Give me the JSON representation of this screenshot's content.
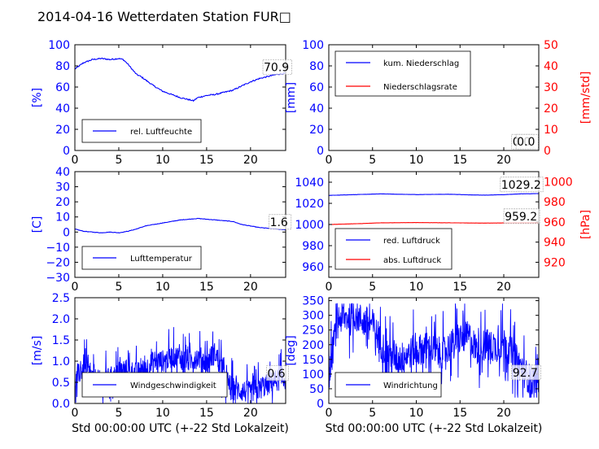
{
  "figure": {
    "title": "2014-04-16 Wetterdaten Station FUR□"
  },
  "colors": {
    "blue": "#0000ff",
    "red": "#ff0000",
    "black": "#000000"
  },
  "chart_data": [
    {
      "id": "humidity",
      "type": "line",
      "xlim": [
        0,
        24
      ],
      "ylim": [
        0,
        100
      ],
      "xticks": [
        "0",
        "5",
        "10",
        "15",
        "20"
      ],
      "xtick_values": [
        0,
        5,
        10,
        15,
        20
      ],
      "yticks": [
        "0",
        "20",
        "40",
        "60",
        "80",
        "100"
      ],
      "ytick_values": [
        0,
        20,
        40,
        60,
        80,
        100
      ],
      "ylabel": "[%]",
      "ylabel_color": "blue",
      "ytick_color": "blue",
      "xlabel": "",
      "legend": {
        "position": "lower-left",
        "entries": [
          {
            "name": "rel. Luftfeuchte",
            "color": "blue"
          }
        ]
      },
      "annotations": [
        {
          "text": "70.9",
          "x": 21.5,
          "y": 75
        }
      ],
      "series": [
        {
          "name": "rel. Luftfeuchte",
          "color": "blue",
          "axis": "left",
          "noise": 1.2,
          "x": [
            0,
            0.5,
            1,
            2,
            3,
            4,
            5,
            5.5,
            6,
            6.5,
            7,
            7.5,
            8,
            9,
            10,
            11,
            12,
            13,
            13.5,
            14,
            15,
            16,
            17,
            18,
            19,
            20,
            21,
            22,
            23,
            24
          ],
          "y": [
            77,
            80,
            83,
            86,
            87,
            86,
            87,
            86,
            82,
            77,
            72,
            70,
            67,
            61,
            56,
            53,
            50,
            48,
            47,
            50,
            52,
            53,
            55,
            57,
            61,
            65,
            68,
            70,
            72,
            73
          ]
        }
      ]
    },
    {
      "id": "precipitation",
      "type": "line",
      "xlim": [
        0,
        24
      ],
      "ylim": [
        0,
        100
      ],
      "ylim2": [
        0,
        50
      ],
      "xticks": [
        "0",
        "5",
        "10",
        "15",
        "20"
      ],
      "xtick_values": [
        0,
        5,
        10,
        15,
        20
      ],
      "yticks": [
        "0",
        "20",
        "40",
        "60",
        "80",
        "100"
      ],
      "ytick_values": [
        0,
        20,
        40,
        60,
        80,
        100
      ],
      "yticks2": [
        "0",
        "10",
        "20",
        "30",
        "40",
        "50"
      ],
      "ytick2_values": [
        0,
        10,
        20,
        30,
        40,
        50
      ],
      "ylabel": "[mm]",
      "ylabel_color": "blue",
      "ytick_color": "blue",
      "ylabel2": "[mm/std]",
      "ylabel2_color": "red",
      "ytick2_color": "red",
      "xlabel": "",
      "legend": {
        "position": "upper-left",
        "entries": [
          {
            "name": "kum. Niederschlag",
            "color": "blue"
          },
          {
            "name": "Niederschlagsrate",
            "color": "red"
          }
        ]
      },
      "annotations": [
        {
          "text": "0.0",
          "x": 21.0,
          "y": 4.5
        },
        {
          "text": "0.0",
          "x": 21.5,
          "y": 4.5
        }
      ],
      "series": [
        {
          "name": "kum. Niederschlag",
          "color": "blue",
          "axis": "left",
          "noise": 0,
          "x": [
            0,
            24
          ],
          "y": [
            0,
            0
          ]
        },
        {
          "name": "Niederschlagsrate",
          "color": "red",
          "axis": "right",
          "noise": 0,
          "x": [
            0,
            24
          ],
          "y": [
            0,
            0
          ]
        }
      ]
    },
    {
      "id": "temperature",
      "type": "line",
      "xlim": [
        0,
        24
      ],
      "ylim": [
        -30,
        40
      ],
      "xticks": [
        "0",
        "5",
        "10",
        "15",
        "20"
      ],
      "xtick_values": [
        0,
        5,
        10,
        15,
        20
      ],
      "yticks": [
        "−30",
        "−20",
        "−10",
        "0",
        "10",
        "20",
        "30",
        "40"
      ],
      "ytick_values": [
        -30,
        -20,
        -10,
        0,
        10,
        20,
        30,
        40
      ],
      "ylabel": "[C]",
      "ylabel_color": "blue",
      "ytick_color": "blue",
      "xlabel": "",
      "legend": {
        "position": "lower-left",
        "entries": [
          {
            "name": "Lufttemperatur",
            "color": "blue"
          }
        ]
      },
      "annotations": [
        {
          "text": "1.6",
          "x": 22.2,
          "y": 4
        }
      ],
      "series": [
        {
          "name": "Lufttemperatur",
          "color": "blue",
          "axis": "left",
          "noise": 0.3,
          "x": [
            0,
            1,
            2,
            3,
            4,
            5,
            6,
            7,
            8,
            9,
            10,
            11,
            12,
            13,
            14,
            15,
            16,
            17,
            18,
            19,
            20,
            21,
            22,
            23,
            24
          ],
          "y": [
            2,
            0.5,
            0,
            -0.5,
            0,
            -0.5,
            0.5,
            2,
            4,
            5,
            6,
            7,
            8,
            8.5,
            9,
            8.5,
            8,
            7.5,
            7,
            5,
            4,
            3,
            2.5,
            2,
            1.6
          ]
        }
      ]
    },
    {
      "id": "pressure",
      "type": "line",
      "xlim": [
        0,
        24
      ],
      "ylim": [
        950,
        1050
      ],
      "ylim2": [
        905,
        1010
      ],
      "xticks": [
        "0",
        "5",
        "10",
        "15",
        "20"
      ],
      "xtick_values": [
        0,
        5,
        10,
        15,
        20
      ],
      "yticks": [
        "960",
        "980",
        "1000",
        "1020",
        "1040"
      ],
      "ytick_values": [
        960,
        980,
        1000,
        1020,
        1040
      ],
      "yticks2": [
        "920",
        "940",
        "960",
        "980",
        "1000"
      ],
      "ytick2_values": [
        920,
        940,
        960,
        980,
        1000
      ],
      "ylabel": "",
      "ytick_color": "blue",
      "ylabel2": "[hPa]",
      "ylabel2_color": "red",
      "ytick2_color": "red",
      "xlabel": "",
      "legend": {
        "position": "lower-left",
        "entries": [
          {
            "name": "red. Luftdruck",
            "color": "blue"
          },
          {
            "name": "abs. Luftdruck",
            "color": "red"
          }
        ]
      },
      "annotations": [
        {
          "text": "1029.2",
          "x": 19.7,
          "y": 1034
        },
        {
          "text": "959.2",
          "x": 20.1,
          "y": 1004
        }
      ],
      "series": [
        {
          "name": "red. Luftdruck",
          "color": "blue",
          "axis": "left",
          "noise": 0.15,
          "x": [
            0,
            2,
            4,
            6,
            8,
            10,
            12,
            14,
            16,
            18,
            20,
            22,
            24
          ],
          "y": [
            1027.5,
            1028,
            1028.5,
            1029,
            1028.6,
            1028.3,
            1028.5,
            1028.6,
            1028,
            1027.8,
            1028.2,
            1029,
            1029.2
          ]
        },
        {
          "name": "abs. Luftdruck",
          "color": "red",
          "axis": "right",
          "noise": 0.12,
          "x": [
            0,
            2,
            4,
            6,
            8,
            10,
            12,
            14,
            16,
            18,
            20,
            22,
            24
          ],
          "y": [
            957.5,
            958,
            958.5,
            959.2,
            959.3,
            959.4,
            959.3,
            959.2,
            959,
            958.9,
            959,
            959.2,
            959.2
          ]
        }
      ]
    },
    {
      "id": "windspeed",
      "type": "line",
      "xlim": [
        0,
        24
      ],
      "ylim": [
        0,
        2.5
      ],
      "xticks": [
        "0",
        "5",
        "10",
        "15",
        "20"
      ],
      "xtick_values": [
        0,
        5,
        10,
        15,
        20
      ],
      "yticks": [
        "0.0",
        "0.5",
        "1.0",
        "1.5",
        "2.0",
        "2.5"
      ],
      "ytick_values": [
        0,
        0.5,
        1.0,
        1.5,
        2.0,
        2.5
      ],
      "ylabel": "[m/s]",
      "ylabel_color": "blue",
      "ytick_color": "blue",
      "xlabel": "Std 00:00:00 UTC (+-22 Std Lokalzeit)",
      "legend": {
        "position": "lower-left",
        "entries": [
          {
            "name": "Windgeschwindigkeit",
            "color": "blue"
          }
        ]
      },
      "annotations": [
        {
          "text": "0.6",
          "x": 21.9,
          "y": 0.62
        }
      ],
      "series": [
        {
          "name": "Windgeschwindigkeit",
          "color": "blue",
          "axis": "left",
          "noise": 0.45,
          "clamp": [
            0,
            2.5
          ],
          "dense": true,
          "x": [
            0,
            1,
            2,
            3,
            4,
            5,
            6,
            7,
            8,
            9,
            10,
            11,
            12,
            13,
            14,
            15,
            16,
            17,
            18,
            19,
            20,
            21,
            22,
            23,
            24
          ],
          "y": [
            0.5,
            0.9,
            0.6,
            0.5,
            0.6,
            0.7,
            0.8,
            0.7,
            0.8,
            1.0,
            1.0,
            1.1,
            1.1,
            1.0,
            1.1,
            1.0,
            1.2,
            0.6,
            0.35,
            0.3,
            0.25,
            0.35,
            0.45,
            0.55,
            0.6
          ]
        }
      ]
    },
    {
      "id": "winddirection",
      "type": "line",
      "xlim": [
        0,
        24
      ],
      "ylim": [
        0,
        360
      ],
      "xticks": [
        "0",
        "5",
        "10",
        "15",
        "20"
      ],
      "xtick_values": [
        0,
        5,
        10,
        15,
        20
      ],
      "yticks": [
        "0",
        "50",
        "100",
        "150",
        "200",
        "250",
        "300",
        "350"
      ],
      "ytick_values": [
        0,
        50,
        100,
        150,
        200,
        250,
        300,
        350
      ],
      "ylabel": "[deg]",
      "ylabel_color": "blue",
      "ytick_color": "blue",
      "xlabel": "Std 00:00:00 UTC (+-22 Std Lokalzeit)",
      "legend": {
        "position": "lower-left",
        "entries": [
          {
            "name": "Windrichtung",
            "color": "blue"
          }
        ]
      },
      "annotations": [
        {
          "text": "92.7",
          "x": 21.0,
          "y": 92
        }
      ],
      "series": [
        {
          "name": "Windrichtung",
          "color": "blue",
          "axis": "left",
          "noise": 90,
          "clamp": [
            20,
            340
          ],
          "dense": true,
          "x": [
            0,
            1,
            2,
            3,
            4,
            5,
            6,
            7,
            8,
            9,
            10,
            11,
            12,
            13,
            14,
            15,
            16,
            17,
            18,
            19,
            20,
            21,
            22,
            23,
            24
          ],
          "y": [
            90,
            290,
            290,
            300,
            280,
            270,
            200,
            160,
            150,
            170,
            180,
            190,
            180,
            170,
            200,
            220,
            230,
            180,
            200,
            190,
            210,
            170,
            120,
            80,
            70
          ]
        }
      ]
    }
  ]
}
